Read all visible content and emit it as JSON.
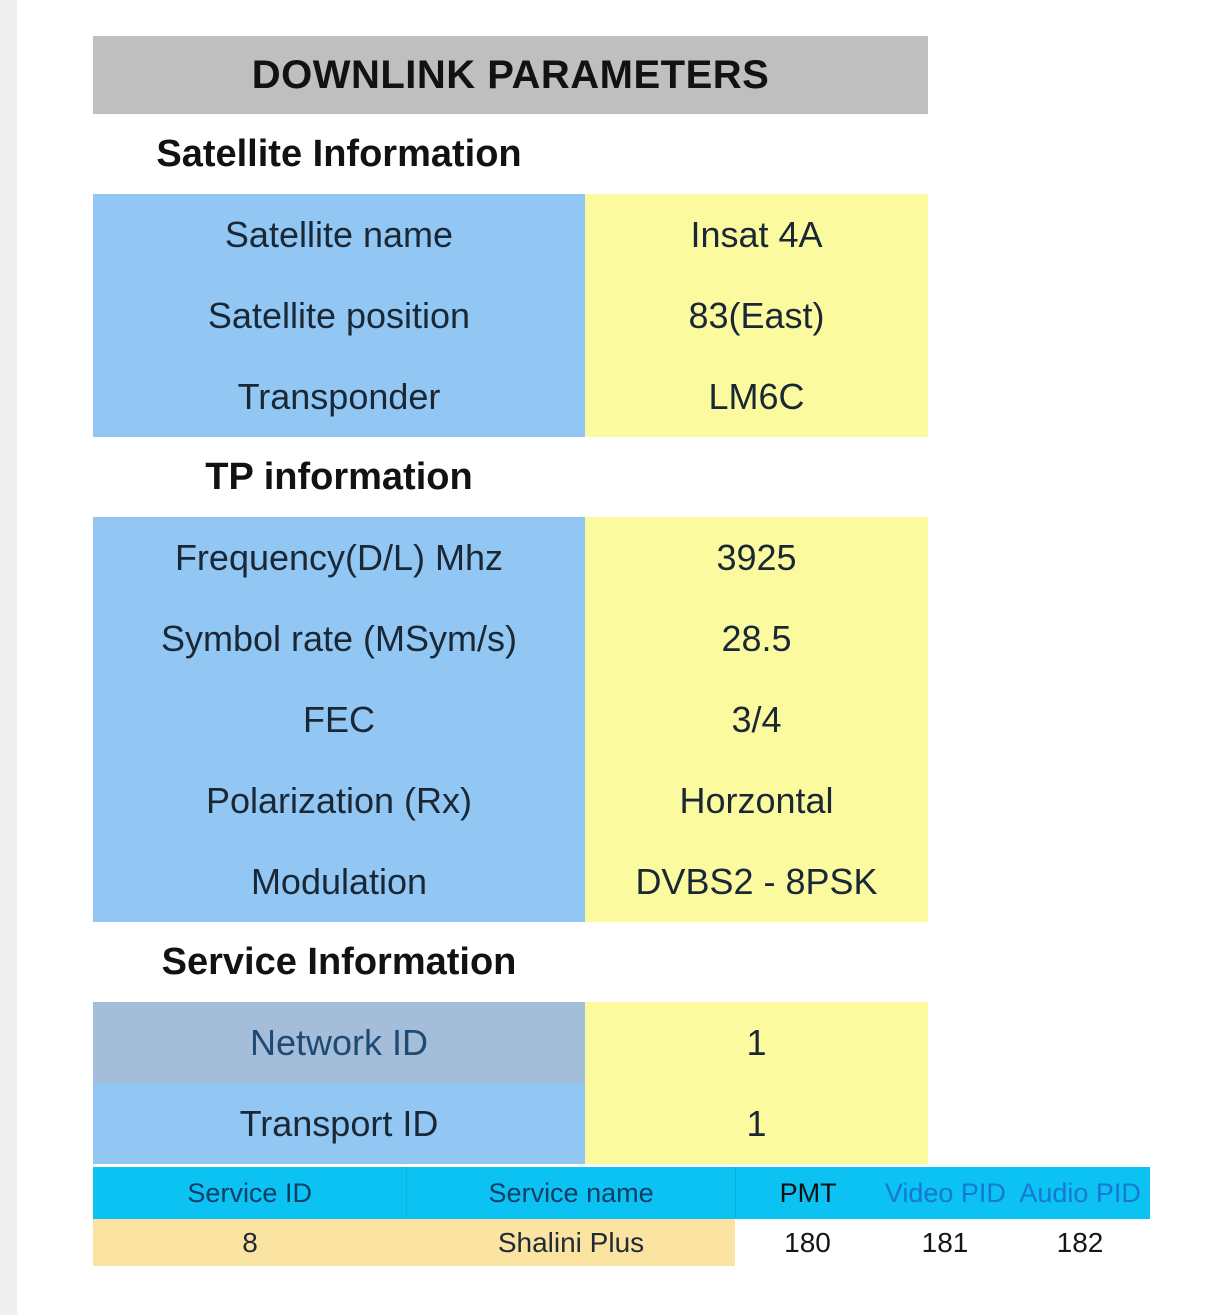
{
  "title": "DOWNLINK PARAMETERS",
  "sections": [
    {
      "heading": "Satellite Information",
      "rows": [
        {
          "label": "Satellite name",
          "value": "Insat 4A"
        },
        {
          "label": "Satellite position",
          "value": "83(East)"
        },
        {
          "label": "Transponder",
          "value": "LM6C"
        }
      ]
    },
    {
      "heading": "TP information",
      "rows": [
        {
          "label": "Frequency(D/L) Mhz",
          "value": "3925"
        },
        {
          "label": "Symbol rate (MSym/s)",
          "value": "28.5"
        },
        {
          "label": "FEC",
          "value": "3/4"
        },
        {
          "label": "Polarization (Rx)",
          "value": "Horzontal"
        },
        {
          "label": "Modulation",
          "value": "DVBS2 - 8PSK"
        }
      ]
    },
    {
      "heading": "Service Information",
      "rows": [
        {
          "label": "Network ID",
          "value": "1"
        },
        {
          "label": "Transport ID",
          "value": "1"
        }
      ]
    }
  ],
  "service_table": {
    "headers": [
      "Service ID",
      "Service name",
      "PMT",
      "Video PID",
      "Audio PID"
    ],
    "row": [
      "8",
      "Shalini Plus",
      "180",
      "181",
      "182"
    ]
  },
  "colors": {
    "title_bar_bg": "#bfbfbf",
    "label_cell_bg": "#92c7f4",
    "network_id_cell_bg": "#a4bed9",
    "value_cell_bg": "#fcfa9e",
    "service_header_bg": "#0cc2f2",
    "service_row_bg": "#fbe3a2",
    "pid_header_text": "#1778d4",
    "network_id_text": "#1e4a74"
  }
}
